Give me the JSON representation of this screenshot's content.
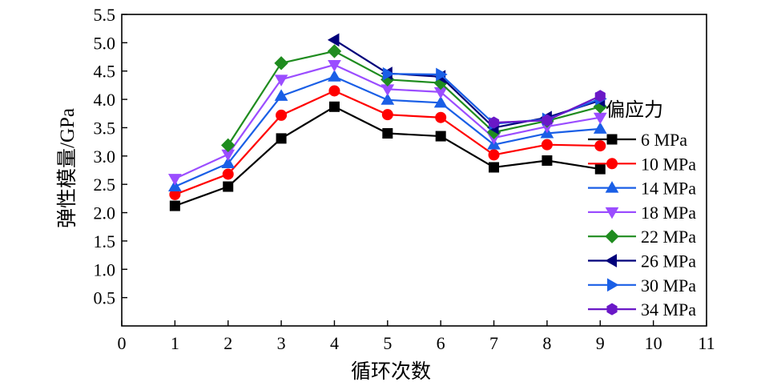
{
  "chart_data": {
    "type": "line",
    "title": "",
    "xlabel": "循环次数",
    "ylabel": "弹性模量/GPa",
    "xlim": [
      0,
      11
    ],
    "ylim": [
      0,
      5.5
    ],
    "xticks": [
      0,
      1,
      2,
      3,
      4,
      5,
      6,
      7,
      8,
      9,
      10,
      11
    ],
    "yticks": [
      0.5,
      1.0,
      1.5,
      2.0,
      2.5,
      3.0,
      3.5,
      4.0,
      4.5,
      5.0,
      5.5
    ],
    "yticklabels": [
      "0.5",
      "1.0",
      "1.5",
      "2.0",
      "2.5",
      "3.0",
      "3.5",
      "4.0",
      "4.5",
      "5.0",
      "5.5"
    ],
    "grid": false,
    "legend": {
      "title": "偏应力",
      "position": "right"
    },
    "series": [
      {
        "name": "6 MPa",
        "color": "#000000",
        "marker": "square",
        "x": [
          1,
          2,
          3,
          4,
          5,
          6,
          7,
          8,
          9
        ],
        "values": [
          2.12,
          2.46,
          3.31,
          3.87,
          3.4,
          3.35,
          2.8,
          2.92,
          2.77
        ]
      },
      {
        "name": "10 MPa",
        "color": "#ff0000",
        "marker": "circle",
        "x": [
          1,
          2,
          3,
          4,
          5,
          6,
          7,
          8,
          9
        ],
        "values": [
          2.32,
          2.68,
          3.72,
          4.15,
          3.73,
          3.68,
          3.02,
          3.2,
          3.18
        ]
      },
      {
        "name": "14 MPa",
        "color": "#1a5fe6",
        "marker": "triangle-up",
        "x": [
          1,
          2,
          3,
          4,
          5,
          6,
          7,
          8,
          9
        ],
        "values": [
          2.46,
          2.87,
          4.06,
          4.4,
          3.99,
          3.94,
          3.2,
          3.4,
          3.48
        ]
      },
      {
        "name": "18 MPa",
        "color": "#9b4dff",
        "marker": "triangle-down",
        "x": [
          1,
          2,
          3,
          4,
          5,
          6,
          7,
          8,
          9
        ],
        "values": [
          2.6,
          3.03,
          4.35,
          4.61,
          4.18,
          4.13,
          3.32,
          3.52,
          3.68
        ]
      },
      {
        "name": "22 MPa",
        "color": "#1f8c1f",
        "marker": "diamond",
        "x": [
          2,
          3,
          4,
          5,
          6,
          7,
          8,
          9
        ],
        "values": [
          3.19,
          4.64,
          4.85,
          4.35,
          4.29,
          3.42,
          3.62,
          3.87
        ]
      },
      {
        "name": "26 MPa",
        "color": "#00007a",
        "marker": "triangle-left",
        "x": [
          4,
          5,
          6,
          7,
          8,
          9
        ],
        "values": [
          5.05,
          4.46,
          4.4,
          3.5,
          3.68,
          3.98
        ]
      },
      {
        "name": "30 MPa",
        "color": "#1a5fe6",
        "marker": "triangle-right",
        "x": [
          5,
          6,
          7,
          8,
          9
        ],
        "values": [
          4.45,
          4.44,
          3.57,
          3.65,
          4.01
        ]
      },
      {
        "name": "34 MPa",
        "color": "#6a18c7",
        "marker": "hexagon",
        "x": [
          7,
          8,
          9
        ],
        "values": [
          3.59,
          3.63,
          4.06
        ]
      }
    ]
  }
}
